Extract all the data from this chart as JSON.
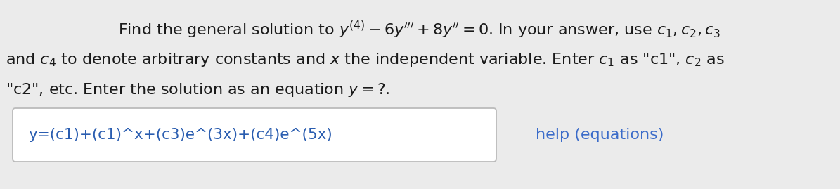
{
  "bg_color": "#ebebeb",
  "white_bg": "#ffffff",
  "text_color_dark": "#1a1a1a",
  "text_color_blue": "#3a6bc9",
  "line1": "Find the general solution to $y^{(4)} - 6y^{\\prime\\prime\\prime} + 8y^{\\prime\\prime} = 0$. In your answer, use $c_1, c_2, c_3$",
  "line2": "and $c_4$ to denote arbitrary constants and $x$ the independent variable. Enter $c_1$ as \"c1\", $c_2$ as",
  "line3": "\"c2\", etc. Enter the solution as an equation $y =?$.",
  "input_text": "y=(c1)+(c1)^x+(c3)e^(3x)+(c4)e^(5x)",
  "help_text": "help (equations)",
  "fontsize_main": 16.0,
  "fontsize_input": 15.5,
  "fontsize_help": 16.0
}
